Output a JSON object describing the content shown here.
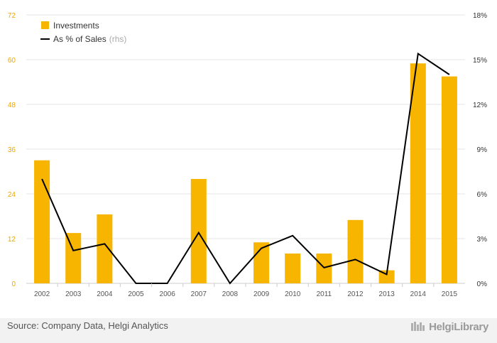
{
  "chart_data": {
    "type": "bar",
    "categories": [
      "2002",
      "2003",
      "2004",
      "2005",
      "2006",
      "2007",
      "2008",
      "2009",
      "2010",
      "2011",
      "2012",
      "2013",
      "2014",
      "2015"
    ],
    "series": [
      {
        "name": "Investments",
        "type": "bar",
        "axis": "left",
        "color": "#f7b500",
        "values": [
          33,
          13.5,
          18.5,
          0,
          0,
          28,
          0,
          11,
          8,
          8,
          17,
          3.5,
          59,
          55.5
        ]
      },
      {
        "name": "As % of Sales",
        "name_suffix": "(rhs)",
        "type": "line",
        "axis": "right",
        "color": "#000000",
        "values": [
          7.0,
          2.2,
          2.65,
          0,
          0,
          3.4,
          0,
          2.35,
          3.2,
          1.05,
          1.6,
          0.6,
          15.4,
          14.0
        ]
      }
    ],
    "ylim_left": [
      0,
      72
    ],
    "yticks_left": [
      0,
      12,
      24,
      36,
      48,
      60,
      72
    ],
    "ylim_right": [
      0,
      18
    ],
    "yticks_right": [
      "0%",
      "3%",
      "6%",
      "9%",
      "12%",
      "15%",
      "18%"
    ],
    "grid": true,
    "legend_position": "top-left"
  },
  "footer": {
    "source": "Source: Company Data, Helgi Analytics",
    "brand": "HelgiLibrary"
  }
}
